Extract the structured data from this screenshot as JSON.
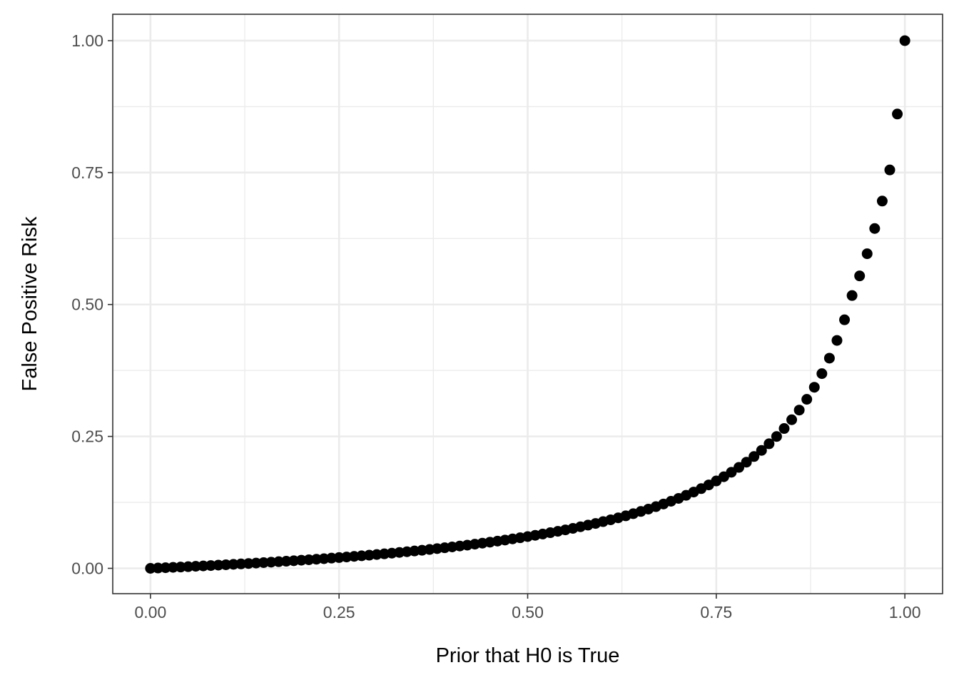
{
  "chart_data": {
    "type": "scatter",
    "title": "",
    "xlabel": "Prior that H0 is True",
    "ylabel": "False Positive Risk",
    "xlim": [
      -0.05,
      1.05
    ],
    "ylim": [
      -0.048,
      1.05
    ],
    "x_ticks": [
      0,
      0.25,
      0.5,
      0.75,
      1.0
    ],
    "x_tick_labels": [
      "0.00",
      "0.25",
      "0.50",
      "0.75",
      "1.00"
    ],
    "y_ticks": [
      0,
      0.25,
      0.5,
      0.75,
      1.0
    ],
    "y_tick_labels": [
      "0.00",
      "0.25",
      "0.50",
      "0.75",
      "1.00"
    ],
    "x_minor_ticks": [
      0.125,
      0.375,
      0.625,
      0.875
    ],
    "y_minor_ticks": [
      0.125,
      0.375,
      0.625,
      0.875
    ],
    "grid": true,
    "legend": "none",
    "point_color": "#000000",
    "series": [
      {
        "x": [
          0.0,
          0.01,
          0.02,
          0.03,
          0.04,
          0.05,
          0.06,
          0.07,
          0.08,
          0.09,
          0.1,
          0.11,
          0.12,
          0.13,
          0.14,
          0.15,
          0.16,
          0.17,
          0.18,
          0.19,
          0.2,
          0.21,
          0.22,
          0.23,
          0.24,
          0.25,
          0.26,
          0.27,
          0.28,
          0.29,
          0.3,
          0.31,
          0.32,
          0.33,
          0.34,
          0.35,
          0.36,
          0.37,
          0.38,
          0.39,
          0.4,
          0.41,
          0.42,
          0.43,
          0.44,
          0.45,
          0.46,
          0.47,
          0.48,
          0.49,
          0.5,
          0.51,
          0.52,
          0.53,
          0.54,
          0.55,
          0.56,
          0.57,
          0.58,
          0.59,
          0.6,
          0.61,
          0.62,
          0.63,
          0.64,
          0.65,
          0.66,
          0.67,
          0.68,
          0.69,
          0.7,
          0.71,
          0.72,
          0.73,
          0.74,
          0.75,
          0.76,
          0.77,
          0.78,
          0.79,
          0.8,
          0.81,
          0.82,
          0.83,
          0.84,
          0.85,
          0.86,
          0.87,
          0.88,
          0.89,
          0.9,
          0.91,
          0.92,
          0.93,
          0.94,
          0.95,
          0.96,
          0.97,
          0.98,
          0.99,
          1.0
        ],
        "y": [
          0.0,
          0.0006,
          0.0012,
          0.0019,
          0.0025,
          0.0032,
          0.0039,
          0.0046,
          0.0053,
          0.0061,
          0.0068,
          0.0076,
          0.0084,
          0.0092,
          0.01,
          0.0109,
          0.0117,
          0.0126,
          0.0135,
          0.0144,
          0.0154,
          0.0163,
          0.0173,
          0.0183,
          0.0194,
          0.0204,
          0.0215,
          0.0227,
          0.0238,
          0.025,
          0.0262,
          0.0275,
          0.0288,
          0.0301,
          0.0315,
          0.0329,
          0.0343,
          0.0358,
          0.0374,
          0.039,
          0.0406,
          0.0423,
          0.044,
          0.0458,
          0.0477,
          0.0496,
          0.0516,
          0.0536,
          0.0558,
          0.0579,
          0.0602,
          0.0626,
          0.065,
          0.0676,
          0.0702,
          0.0729,
          0.0758,
          0.0788,
          0.0819,
          0.0851,
          0.0885,
          0.092,
          0.0957,
          0.0995,
          0.1036,
          0.1078,
          0.1123,
          0.1169,
          0.1219,
          0.1271,
          0.1326,
          0.1384,
          0.1446,
          0.1511,
          0.1581,
          0.1656,
          0.1736,
          0.1821,
          0.1913,
          0.2012,
          0.2119,
          0.2235,
          0.2361,
          0.2499,
          0.265,
          0.2816,
          0.2999,
          0.3203,
          0.3432,
          0.369,
          0.3983,
          0.4319,
          0.471,
          0.517,
          0.5542,
          0.5962,
          0.644,
          0.696,
          0.755,
          0.861,
          1.0
        ]
      }
    ]
  }
}
